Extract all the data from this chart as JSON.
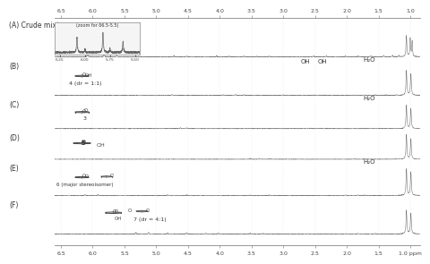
{
  "background_color": "#ffffff",
  "x_min": 0.85,
  "x_max": 6.6,
  "panel_labels": [
    "(A) Crude mixture",
    "(B)",
    "(C)",
    "(D)",
    "(E)",
    "(F)"
  ],
  "x_ticks": [
    6.5,
    6.0,
    5.5,
    5.0,
    4.5,
    4.0,
    3.5,
    3.0,
    2.5,
    2.0,
    1.5,
    1.0
  ],
  "x_tick_labels_top": [
    "6.5",
    "6.0",
    "5.5",
    "5.0",
    "4.5",
    "4.0",
    "3.5",
    "3.0",
    "2.5",
    "2.0",
    "1.5",
    "1.0"
  ],
  "x_tick_labels_bottom": [
    "6.5",
    "6.0",
    "5.5",
    "5.0",
    "4.5",
    "4.0",
    "3.5",
    "3.0",
    "2.5",
    "2.0",
    "1.5",
    "1.0 ppm"
  ],
  "zoom_text": "(zoom for δ6.5-5.5)",
  "zoom_ticks": [
    6.25,
    6.0,
    5.75,
    5.5
  ],
  "zoom_tick_labels": [
    "6.25",
    "6.00",
    "5.75",
    "5.50"
  ],
  "line_color": "#777777",
  "grid_color": "#dddddd",
  "label_color": "#333333"
}
